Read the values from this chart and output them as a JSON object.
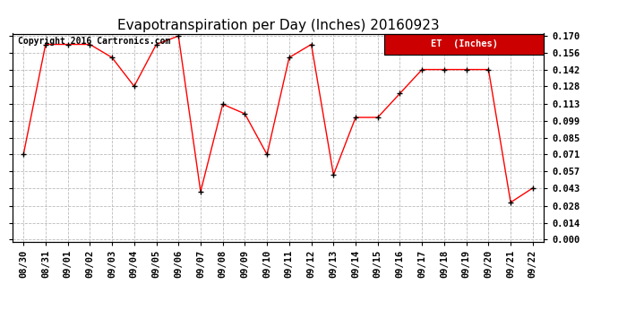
{
  "title": "Evapotranspiration per Day (Inches) 20160923",
  "copyright_text": "Copyright 2016 Cartronics.com",
  "legend_label": "ET  (Inches)",
  "legend_bg": "#cc0000",
  "legend_text_color": "#ffffff",
  "line_color": "#ff0000",
  "marker_color": "#000000",
  "background_color": "#ffffff",
  "grid_color": "#bbbbbb",
  "dates": [
    "08/30",
    "08/31",
    "09/01",
    "09/02",
    "09/03",
    "09/04",
    "09/05",
    "09/06",
    "09/07",
    "09/08",
    "09/09",
    "09/10",
    "09/11",
    "09/12",
    "09/13",
    "09/14",
    "09/15",
    "09/16",
    "09/17",
    "09/18",
    "09/19",
    "09/20",
    "09/21",
    "09/22"
  ],
  "values": [
    0.071,
    0.163,
    0.163,
    0.163,
    0.152,
    0.128,
    0.163,
    0.17,
    0.04,
    0.113,
    0.105,
    0.071,
    0.152,
    0.163,
    0.054,
    0.102,
    0.102,
    0.122,
    0.142,
    0.142,
    0.142,
    0.142,
    0.031,
    0.043
  ],
  "ylim": [
    -0.002,
    0.172
  ],
  "yticks": [
    0.0,
    0.014,
    0.028,
    0.043,
    0.057,
    0.071,
    0.085,
    0.099,
    0.113,
    0.128,
    0.142,
    0.156,
    0.17
  ],
  "title_fontsize": 11,
  "tick_fontsize": 7.5,
  "copyright_fontsize": 7
}
